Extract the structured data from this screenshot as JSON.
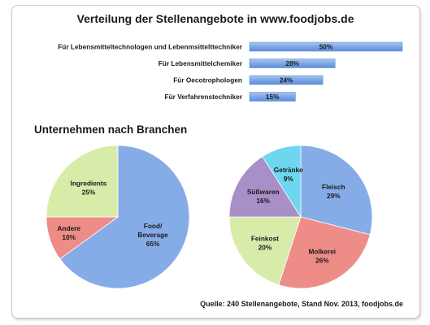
{
  "source_note": "Quelle: 240 Stellenangebote, Stand Nov. 2013, foodjobs.de",
  "colors": {
    "bar": "#7ca7e6",
    "pie_blue": "#86ace8",
    "pie_red": "#ee8c88",
    "pie_green": "#d8ecaa",
    "pie_purple": "#a88fc8",
    "pie_cyan": "#6fd6ef"
  },
  "chart_data": [
    {
      "type": "bar",
      "orientation": "horizontal",
      "title": "Verteilung der Stellenangebote in www.foodjobs.de",
      "categories": [
        "Für  Lebensmitteltechnologen und Lebenmsittelttechniker",
        "Für  Lebensmittelchemiker",
        "Für Oecotrophologen",
        "Für Verfahrenstechniker"
      ],
      "values": [
        50,
        28,
        24,
        15
      ],
      "value_labels": [
        "50%",
        "28%",
        "24%",
        "15%"
      ],
      "xlim": [
        0,
        50
      ]
    },
    {
      "type": "pie",
      "title": "Unternehmen nach Branchen",
      "slices": [
        {
          "lines": [
            "Food/",
            "Beverage",
            "65%"
          ],
          "value": 65,
          "color": "#86ace8"
        },
        {
          "lines": [
            "Andere",
            "10%"
          ],
          "value": 10,
          "color": "#ee8c88"
        },
        {
          "lines": [
            "Ingredients",
            "25%"
          ],
          "value": 25,
          "color": "#d8ecaa"
        }
      ]
    },
    {
      "type": "pie",
      "title": "",
      "slices": [
        {
          "lines": [
            "Fleisch",
            "29%"
          ],
          "value": 29,
          "color": "#86ace8"
        },
        {
          "lines": [
            "Molkerei",
            "26%"
          ],
          "value": 26,
          "color": "#ee8c88"
        },
        {
          "lines": [
            "Feinkost",
            "20%"
          ],
          "value": 20,
          "color": "#d8ecaa"
        },
        {
          "lines": [
            "Süßwaren",
            "16%"
          ],
          "value": 16,
          "color": "#a88fc8"
        },
        {
          "lines": [
            "Getränke",
            "9%"
          ],
          "value": 9,
          "color": "#6fd6ef"
        }
      ]
    }
  ]
}
